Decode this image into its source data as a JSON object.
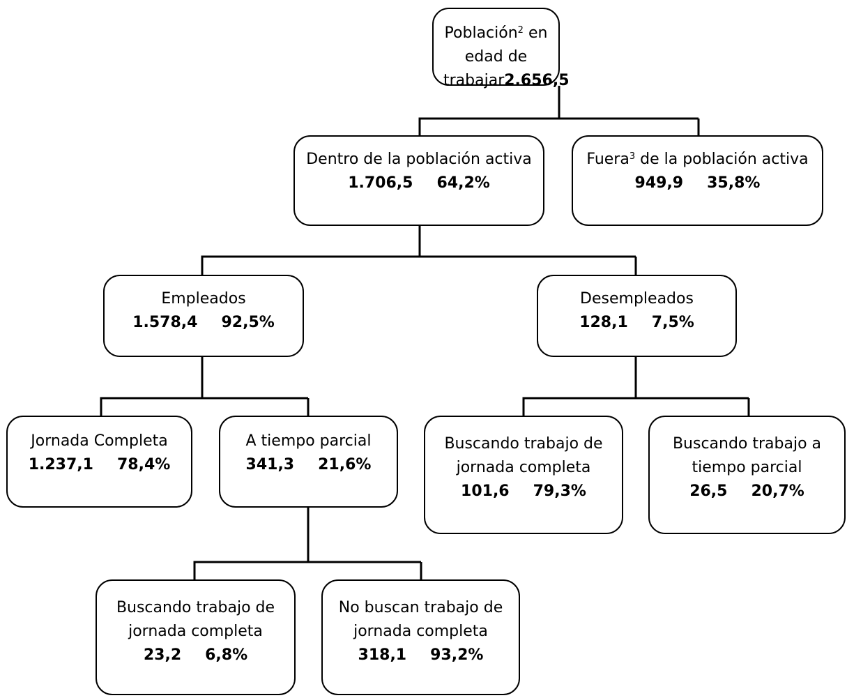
{
  "nodes": {
    "root": {
      "label_pre": "Población",
      "label_sup": "2",
      "label_post": " en edad de",
      "label_line2": "trabajar",
      "value": "2.656,5"
    },
    "activa": {
      "label": "Dentro de la población activa",
      "value": "1.706,5",
      "pct": "64,2%"
    },
    "fuera": {
      "label_pre": "Fuera",
      "label_sup": "3",
      "label_post": " de la población activa",
      "value": "949,9",
      "pct": "35,8%"
    },
    "empleados": {
      "label": "Empleados",
      "value": "1.578,4",
      "pct": "92,5%"
    },
    "desempleados": {
      "label": "Desempleados",
      "value": "128,1",
      "pct": "7,5%"
    },
    "jornada_completa": {
      "label": "Jornada Completa",
      "value": "1.237,1",
      "pct": "78,4%"
    },
    "tiempo_parcial": {
      "label": "A tiempo parcial",
      "value": "341,3",
      "pct": "21,6%"
    },
    "desemp_busc_completa": {
      "label_line1": "Buscando trabajo de",
      "label_line2": "jornada completa",
      "value": "101,6",
      "pct": "79,3%"
    },
    "desemp_busc_parcial": {
      "label_line1": "Buscando trabajo a",
      "label_line2": "tiempo parcial",
      "value": "26,5",
      "pct": "20,7%"
    },
    "parcial_busc_completa": {
      "label_line1": "Buscando trabajo de",
      "label_line2": "jornada completa",
      "value": "23,2",
      "pct": "6,8%"
    },
    "parcial_no_busc": {
      "label_line1": "No buscan trabajo de",
      "label_line2": "jornada completa",
      "value": "318,1",
      "pct": "93,2%"
    }
  }
}
